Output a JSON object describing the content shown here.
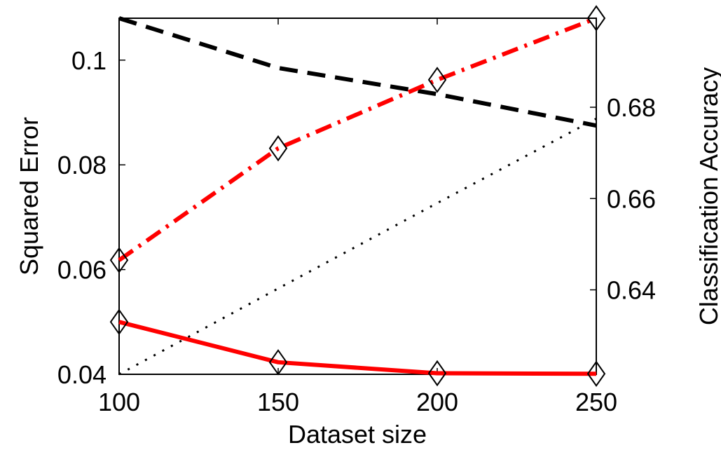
{
  "chart_data": {
    "type": "line",
    "xlabel": "Dataset size",
    "ylabel_left": "Squared Error",
    "ylabel_right": "Classification Accuracy",
    "x": [
      100,
      150,
      200,
      250
    ],
    "xlim": [
      100,
      250
    ],
    "ylim_left": [
      0.04,
      0.108
    ],
    "ylim_right": [
      0.6215,
      0.6995
    ],
    "x_ticks": [
      "100",
      "150",
      "200",
      "250"
    ],
    "y_ticks_left": [
      "0.04",
      "0.06",
      "0.08",
      "0.1"
    ],
    "y_ticks_right": [
      "0.64",
      "0.66",
      "0.68"
    ],
    "grid": false,
    "series": [
      {
        "axis": "left",
        "style": "solid",
        "color": "#ff0000",
        "marker": "diamond",
        "values": [
          0.05,
          0.0423,
          0.0402,
          0.0401
        ]
      },
      {
        "axis": "left",
        "style": "dashed",
        "color": "#000000",
        "marker": "none",
        "values": [
          0.108,
          0.0985,
          0.0935,
          0.0875
        ]
      },
      {
        "axis": "right",
        "style": "dashdot",
        "color": "#ff0000",
        "marker": "diamond",
        "values": [
          0.6465,
          0.671,
          0.686,
          0.6995
        ]
      },
      {
        "axis": "right",
        "style": "dotted",
        "color": "#000000",
        "marker": "none",
        "values": [
          0.6215,
          0.6403,
          0.659,
          0.6775
        ]
      }
    ]
  }
}
